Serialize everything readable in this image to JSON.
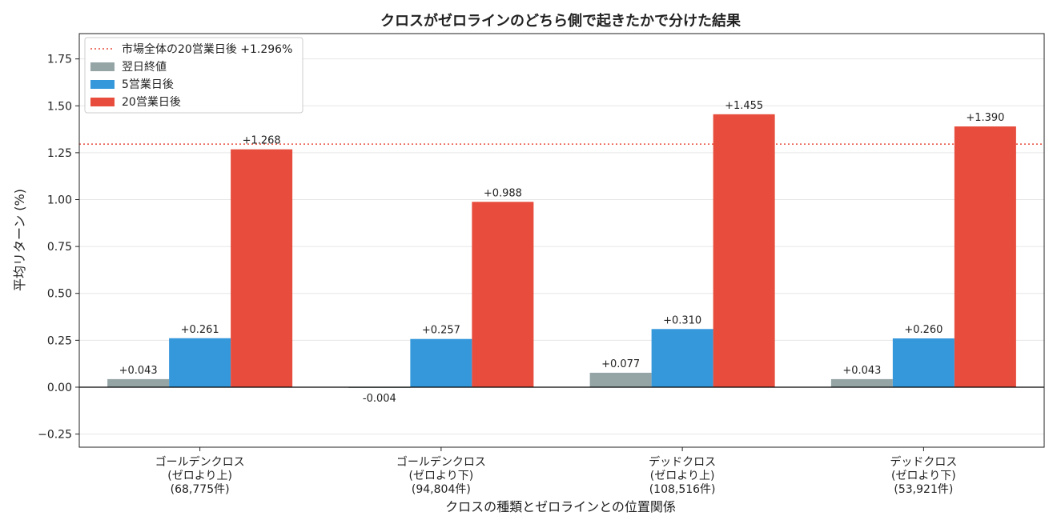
{
  "chart_data": {
    "type": "bar",
    "title": "クロスがゼロラインのどちら側で起きたかで分けた結果",
    "xlabel": "クロスの種類とゼロラインとの位置関係",
    "ylabel": "平均リターン (%)",
    "ylim": [
      -0.32,
      1.885
    ],
    "yticks": [
      -0.25,
      0.0,
      0.25,
      0.5,
      0.75,
      1.0,
      1.25,
      1.5,
      1.75
    ],
    "ytick_labels": [
      "−0.25",
      "0.00",
      "0.25",
      "0.50",
      "0.75",
      "1.00",
      "1.25",
      "1.50",
      "1.75"
    ],
    "grid": "y",
    "legend_position": "top-left",
    "categories": [
      [
        "ゴールデンクロス",
        "(ゼロより上)",
        "(68,775件)"
      ],
      [
        "ゴールデンクロス",
        "(ゼロより下)",
        "(94,804件)"
      ],
      [
        "デッドクロス",
        "(ゼロより上)",
        "(108,516件)"
      ],
      [
        "デッドクロス",
        "(ゼロより下)",
        "(53,921件)"
      ]
    ],
    "series": [
      {
        "name": "翌日終値",
        "color": "#95a5a6",
        "values": [
          0.043,
          -0.004,
          0.077,
          0.043
        ],
        "labels": [
          "+0.043",
          "-0.004",
          "+0.077",
          "+0.043"
        ]
      },
      {
        "name": "5営業日後",
        "color": "#3498db",
        "values": [
          0.261,
          0.257,
          0.31,
          0.26
        ],
        "labels": [
          "+0.261",
          "+0.257",
          "+0.310",
          "+0.260"
        ]
      },
      {
        "name": "20営業日後",
        "color": "#e74c3c",
        "values": [
          1.268,
          0.988,
          1.455,
          1.39
        ],
        "labels": [
          "+1.268",
          "+0.988",
          "+1.455",
          "+1.390"
        ]
      }
    ],
    "reference_line": {
      "name": "市場全体の20営業日後 +1.296%",
      "value": 1.296,
      "color": "#e74c3c",
      "style": "dotted"
    }
  }
}
